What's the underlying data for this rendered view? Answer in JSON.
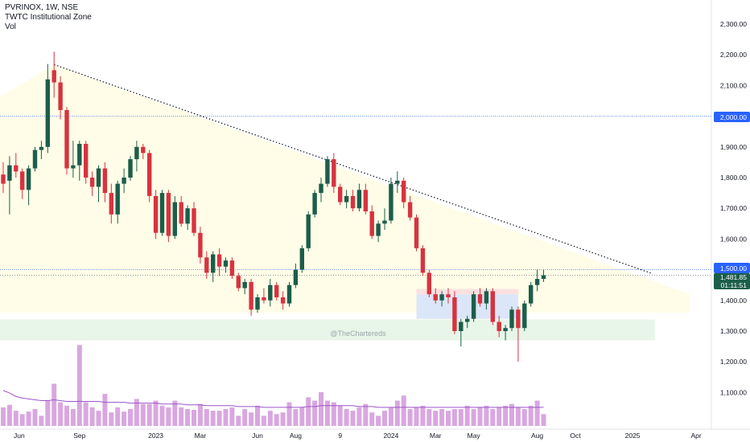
{
  "legend": {
    "symbol_line": "PVRINOX, 1W, NSE",
    "indicator": "TWTC Institutional Zone",
    "volume": "Vol"
  },
  "watermark": "@TheChartereds",
  "price_labels": {
    "level_2000": "2,000.00",
    "level_1500": "1,500.00",
    "last_price": "1,481.85",
    "countdown": "01:11:51"
  },
  "colors": {
    "up": "#26a69a",
    "up_wick": "#4caf50",
    "down": "#ef5350",
    "bull_candle": "#1b5e4a",
    "bear_candle": "#d7333f",
    "volume": "#d9a7e0",
    "volume_ma": "#9c55c9",
    "horizontal_line": "#2962ff",
    "zone_yellow": "#fffde7",
    "zone_green": "#e8f5e9",
    "zone_blue": "#dce6f9",
    "zone_red": "#fde0e0"
  },
  "chart_data": {
    "type": "candlestick",
    "timeframe": "1W",
    "y_axis": {
      "ticks": [
        1100,
        1200,
        1300,
        1400,
        1500,
        1600,
        1700,
        1800,
        1900,
        2000,
        2100,
        2200,
        2300
      ],
      "tick_labels": [
        "1,100.00",
        "1,200.00",
        "1,300.00",
        "1,400.00",
        "1,500.00",
        "1,600.00",
        "1,700.00",
        "1,800.00",
        "1,900.00",
        "2,000.00",
        "2,100.00",
        "2,200.00",
        "2,300.00"
      ],
      "range": [
        1060,
        2340
      ]
    },
    "x_axis": {
      "tick_labels": [
        "Jun",
        "Sep",
        "2023",
        "Mar",
        "Jun",
        "Aug",
        "9",
        "2024",
        "Mar",
        "May",
        "Aug",
        "Oct",
        "2025",
        "Apr"
      ],
      "tick_index": [
        1,
        12,
        24,
        31,
        40,
        46,
        53,
        61,
        68,
        74,
        84,
        90,
        99,
        109
      ]
    },
    "horizontal_lines": [
      2000,
      1500,
      1481.85
    ],
    "trendline": {
      "from": {
        "index": 8,
        "price": 2168
      },
      "to": {
        "index": 102,
        "price": 1488
      }
    },
    "zones": {
      "yellow_supply": {
        "top_left_index": 8,
        "top_left_price": 2168,
        "right_index": 108,
        "top_right_price": 1420,
        "bottom_price": 1360
      },
      "green_demand": {
        "from_index": 0,
        "to_index": 103,
        "low": 1270,
        "high": 1338
      },
      "blue_box": {
        "from_index": 65,
        "to_index": 81,
        "low": 1340,
        "high": 1437
      }
    },
    "candles": [
      [
        1810,
        1850,
        1750,
        1780
      ],
      [
        1790,
        1870,
        1680,
        1840
      ],
      [
        1840,
        1880,
        1800,
        1820
      ],
      [
        1820,
        1830,
        1730,
        1760
      ],
      [
        1760,
        1840,
        1710,
        1830
      ],
      [
        1830,
        1900,
        1820,
        1890
      ],
      [
        1890,
        1920,
        1860,
        1900
      ],
      [
        1900,
        2170,
        1880,
        2120
      ],
      [
        2150,
        2210,
        2060,
        2110
      ],
      [
        2110,
        2130,
        1990,
        2020
      ],
      [
        2020,
        2030,
        1810,
        1830
      ],
      [
        1830,
        1920,
        1800,
        1840
      ],
      [
        1840,
        1920,
        1790,
        1910
      ],
      [
        1910,
        1920,
        1780,
        1800
      ],
      [
        1800,
        1820,
        1740,
        1770
      ],
      [
        1770,
        1840,
        1720,
        1830
      ],
      [
        1830,
        1850,
        1720,
        1750
      ],
      [
        1750,
        1780,
        1650,
        1680
      ],
      [
        1680,
        1790,
        1650,
        1780
      ],
      [
        1780,
        1830,
        1750,
        1800
      ],
      [
        1800,
        1870,
        1790,
        1860
      ],
      [
        1860,
        1920,
        1820,
        1900
      ],
      [
        1900,
        1910,
        1860,
        1880
      ],
      [
        1880,
        1890,
        1720,
        1740
      ],
      [
        1740,
        1760,
        1600,
        1620
      ],
      [
        1620,
        1760,
        1610,
        1750
      ],
      [
        1750,
        1760,
        1590,
        1610
      ],
      [
        1610,
        1740,
        1600,
        1720
      ],
      [
        1720,
        1740,
        1640,
        1650
      ],
      [
        1650,
        1710,
        1630,
        1700
      ],
      [
        1700,
        1720,
        1610,
        1620
      ],
      [
        1620,
        1640,
        1520,
        1540
      ],
      [
        1540,
        1560,
        1470,
        1490
      ],
      [
        1490,
        1560,
        1460,
        1550
      ],
      [
        1550,
        1570,
        1480,
        1510
      ],
      [
        1510,
        1540,
        1490,
        1530
      ],
      [
        1530,
        1540,
        1470,
        1480
      ],
      [
        1480,
        1490,
        1430,
        1440
      ],
      [
        1440,
        1470,
        1420,
        1460
      ],
      [
        1460,
        1470,
        1350,
        1370
      ],
      [
        1370,
        1420,
        1360,
        1410
      ],
      [
        1410,
        1440,
        1390,
        1400
      ],
      [
        1400,
        1470,
        1380,
        1450
      ],
      [
        1450,
        1460,
        1400,
        1410
      ],
      [
        1410,
        1430,
        1370,
        1390
      ],
      [
        1390,
        1460,
        1380,
        1450
      ],
      [
        1450,
        1520,
        1440,
        1500
      ],
      [
        1500,
        1580,
        1490,
        1570
      ],
      [
        1570,
        1690,
        1560,
        1680
      ],
      [
        1680,
        1760,
        1670,
        1750
      ],
      [
        1750,
        1800,
        1720,
        1780
      ],
      [
        1780,
        1870,
        1770,
        1860
      ],
      [
        1860,
        1880,
        1750,
        1770
      ],
      [
        1770,
        1780,
        1710,
        1720
      ],
      [
        1720,
        1760,
        1700,
        1740
      ],
      [
        1740,
        1760,
        1690,
        1700
      ],
      [
        1700,
        1780,
        1690,
        1760
      ],
      [
        1760,
        1780,
        1680,
        1690
      ],
      [
        1690,
        1710,
        1600,
        1610
      ],
      [
        1610,
        1660,
        1590,
        1650
      ],
      [
        1650,
        1700,
        1630,
        1660
      ],
      [
        1660,
        1800,
        1650,
        1780
      ],
      [
        1780,
        1820,
        1750,
        1790
      ],
      [
        1790,
        1800,
        1700,
        1720
      ],
      [
        1720,
        1740,
        1660,
        1670
      ],
      [
        1670,
        1680,
        1560,
        1570
      ],
      [
        1570,
        1580,
        1480,
        1490
      ],
      [
        1490,
        1500,
        1410,
        1420
      ],
      [
        1420,
        1440,
        1390,
        1400
      ],
      [
        1400,
        1430,
        1380,
        1420
      ],
      [
        1420,
        1440,
        1390,
        1410
      ],
      [
        1410,
        1430,
        1290,
        1300
      ],
      [
        1300,
        1340,
        1250,
        1330
      ],
      [
        1330,
        1350,
        1310,
        1340
      ],
      [
        1340,
        1430,
        1330,
        1420
      ],
      [
        1420,
        1440,
        1380,
        1390
      ],
      [
        1390,
        1440,
        1370,
        1430
      ],
      [
        1430,
        1440,
        1320,
        1330
      ],
      [
        1330,
        1350,
        1280,
        1300
      ],
      [
        1300,
        1320,
        1270,
        1310
      ],
      [
        1310,
        1380,
        1300,
        1370
      ],
      [
        1370,
        1380,
        1200,
        1310
      ],
      [
        1310,
        1400,
        1300,
        1390
      ],
      [
        1390,
        1460,
        1380,
        1450
      ],
      [
        1450,
        1500,
        1430,
        1470
      ],
      [
        1470,
        1500,
        1460,
        1482
      ]
    ],
    "volume": [
      22,
      25,
      18,
      14,
      17,
      20,
      12,
      30,
      50,
      28,
      24,
      20,
      96,
      28,
      22,
      18,
      38,
      16,
      22,
      17,
      20,
      32,
      26,
      26,
      30,
      24,
      22,
      30,
      22,
      20,
      19,
      26,
      20,
      18,
      18,
      20,
      22,
      12,
      20,
      16,
      24,
      12,
      18,
      14,
      16,
      28,
      20,
      22,
      34,
      30,
      40,
      30,
      28,
      24,
      20,
      18,
      22,
      26,
      16,
      12,
      18,
      22,
      30,
      36,
      20,
      22,
      24,
      20,
      18,
      20,
      18,
      20,
      20,
      24,
      20,
      22,
      24,
      20,
      22,
      24,
      26,
      22,
      20,
      24,
      30,
      14
    ],
    "volume_ma": [
      42,
      39,
      35,
      33,
      32,
      31,
      30,
      30,
      31,
      30,
      29,
      29,
      29,
      29,
      29,
      29,
      28,
      28,
      28,
      28,
      27,
      27,
      27,
      27,
      27,
      26,
      26,
      26,
      26,
      25,
      25,
      25,
      24,
      24,
      24,
      24,
      24,
      23,
      23,
      23,
      23,
      22,
      22,
      22,
      22,
      22,
      22,
      22,
      23,
      23,
      24,
      24,
      24,
      24,
      24,
      24,
      23,
      23,
      23,
      22,
      22,
      22,
      22,
      22,
      22,
      22,
      22,
      22,
      22,
      22,
      22,
      22,
      22,
      22,
      22,
      22,
      22,
      22,
      22,
      22,
      22,
      22,
      22,
      22,
      22,
      22
    ]
  }
}
